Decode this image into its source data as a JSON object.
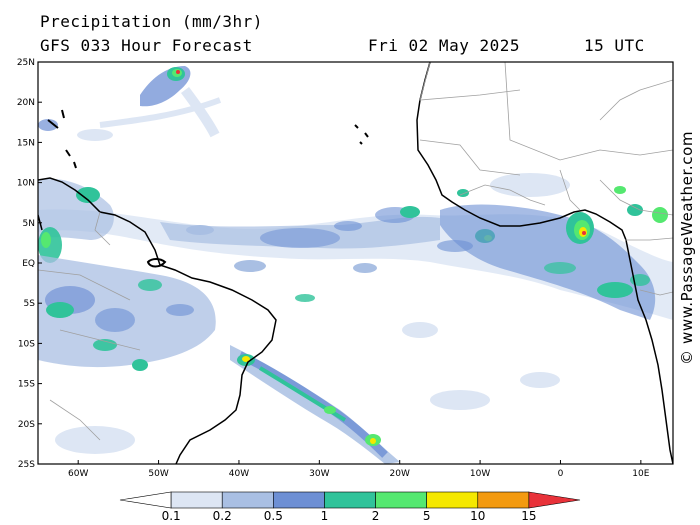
{
  "header": {
    "title": "Precipitation (mm/3hr)",
    "subtitle": "GFS 033 Hour Forecast",
    "date": "Fri 02 May 2025",
    "time": "15 UTC"
  },
  "credit": "© www.PassageWeather.com",
  "lat_labels": [
    "25N",
    "20N",
    "15N",
    "10N",
    "5N",
    "EQ",
    "5S",
    "10S",
    "15S",
    "20S",
    "25S"
  ],
  "lon_labels": [
    "60W",
    "50W",
    "40W",
    "30W",
    "20W",
    "10W",
    "0",
    "10E"
  ],
  "legend": {
    "labels": [
      "0.1",
      "0.2",
      "0.5",
      "1",
      "2",
      "5",
      "10",
      "15"
    ],
    "colors": [
      "#ffffff",
      "#dde6f4",
      "#a9bfe3",
      "#6d8fd4",
      "#30c39a",
      "#55e870",
      "#f5e800",
      "#f39a10",
      "#e8323a"
    ]
  },
  "colors": {
    "land_fill": "#ffffff",
    "coast": "#000000",
    "border": "#a0a0a0",
    "precip_light": "#dde6f4",
    "precip_mid": "#a9bfe3",
    "precip_blue": "#6d8fd4",
    "precip_teal": "#30c39a",
    "precip_green": "#55e870",
    "precip_yellow": "#f5e800",
    "precip_orange": "#f39a10",
    "precip_red": "#e8323a"
  }
}
